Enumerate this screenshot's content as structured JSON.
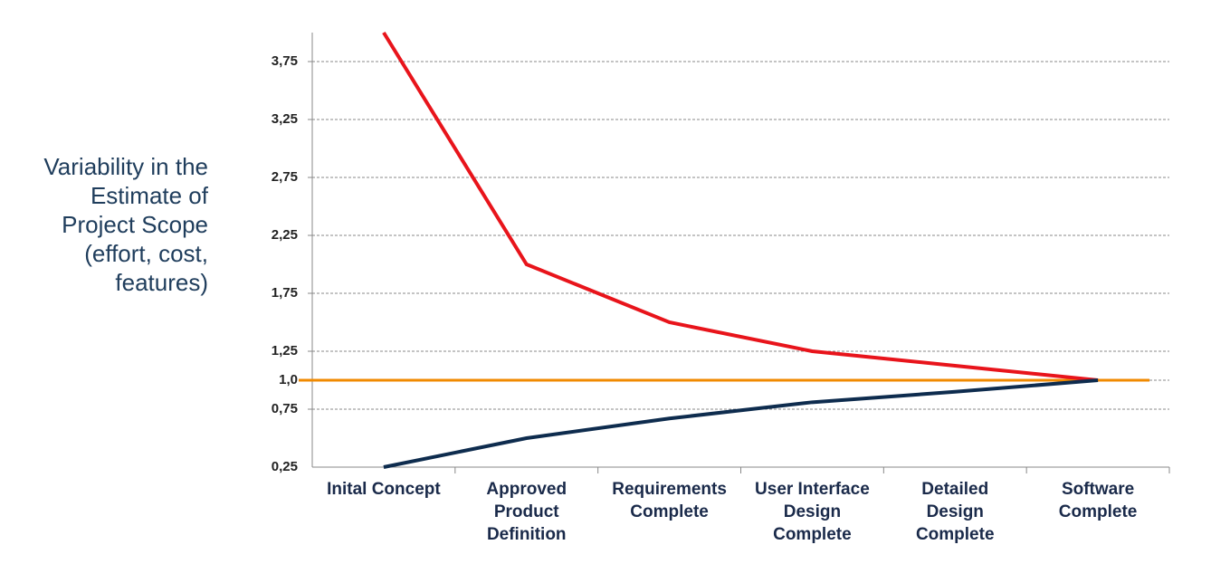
{
  "chart_data": {
    "type": "line",
    "y_label": "Variability in the\nEstimate of\nProject Scope\n(effort, cost,\nfeatures)",
    "categories": [
      "Inital Concept",
      "Approved\nProduct\nDefinition",
      "Requirements\nComplete",
      "User Interface\nDesign\nComplete",
      "Detailed\nDesign\nComplete",
      "Software\nComplete"
    ],
    "series": [
      {
        "color": "#e8141b",
        "values": [
          4.0,
          2.0,
          1.5,
          1.25,
          1.125,
          1.0
        ]
      },
      {
        "color": "#0e2c4e",
        "values": [
          0.25,
          0.5,
          0.67,
          0.81,
          0.9,
          1.0
        ]
      }
    ],
    "reference_line": {
      "value": 1.0,
      "color": "#f08a00"
    },
    "ylim": [
      0.25,
      4.0
    ],
    "yticks": [
      {
        "value": 0.25,
        "label": "0,25"
      },
      {
        "value": 0.75,
        "label": "0,75"
      },
      {
        "value": 1.0,
        "label": "1,0"
      },
      {
        "value": 1.25,
        "label": "1,25"
      },
      {
        "value": 1.75,
        "label": "1,75"
      },
      {
        "value": 2.25,
        "label": "2,25"
      },
      {
        "value": 2.75,
        "label": "2,75"
      },
      {
        "value": 3.25,
        "label": "3,25"
      },
      {
        "value": 3.75,
        "label": "3,75"
      }
    ],
    "grid": true
  }
}
